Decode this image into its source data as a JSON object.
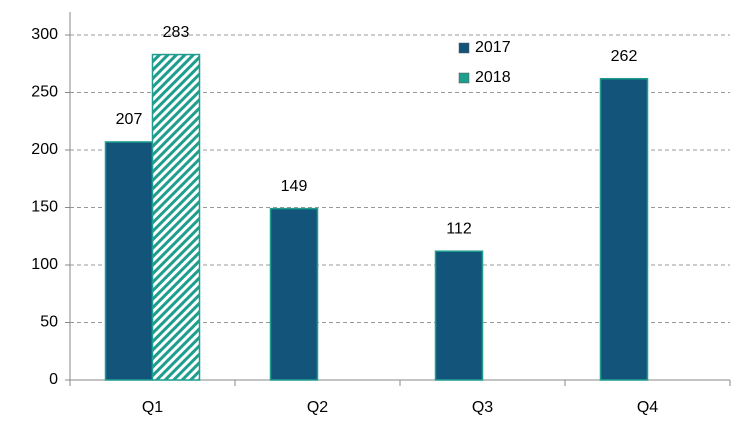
{
  "chart_data": {
    "type": "bar",
    "categories": [
      "Q1",
      "Q2",
      "Q3",
      "Q4"
    ],
    "series": [
      {
        "name": "2017",
        "color": "#13547a",
        "values": [
          207,
          149,
          112,
          262
        ]
      },
      {
        "name": "2018",
        "color": "#1f9e8e",
        "values": [
          283,
          null,
          null,
          null
        ]
      }
    ],
    "ylim": [
      0,
      320
    ],
    "yticks": [
      0,
      50,
      100,
      150,
      200,
      250,
      300
    ],
    "grid": true
  }
}
